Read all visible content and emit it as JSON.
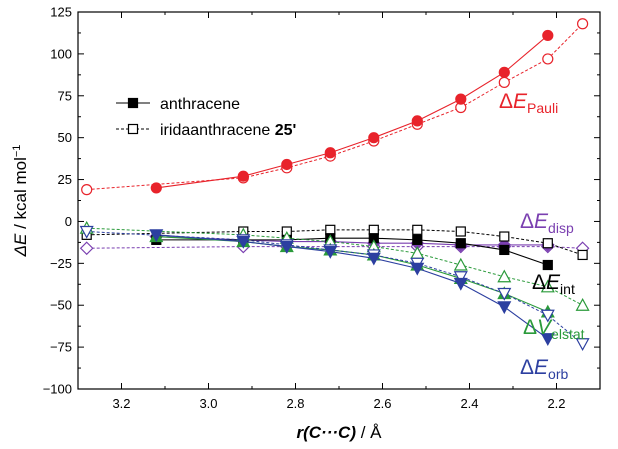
{
  "chart_data": {
    "type": "line",
    "xlabel": {
      "main": "r(C···C)",
      "unit": " / Å"
    },
    "ylabel": {
      "main": "ΔE",
      "unit": " / kcal mol",
      "sup": "−1"
    },
    "xlim": [
      3.3,
      2.1
    ],
    "ylim": [
      -100,
      125
    ],
    "x_reversed": true,
    "xticks": [
      3.2,
      3.0,
      2.8,
      2.6,
      2.4,
      2.2
    ],
    "xtick_labels": [
      "3.2",
      "3.0",
      "2.8",
      "2.6",
      "2.4",
      "2.2"
    ],
    "yticks": [
      -100,
      -75,
      -50,
      -25,
      0,
      25,
      50,
      75,
      100,
      125
    ],
    "ytick_labels": [
      "−100",
      "−75",
      "−50",
      "−25",
      "0",
      "25",
      "50",
      "75",
      "100",
      "125"
    ],
    "legend": {
      "placement": "top-left",
      "entries": [
        {
          "label": "anthracene",
          "style": "filled",
          "line": "solid"
        },
        {
          "label": "iridaanthracene ",
          "bold_suffix": "25'",
          "style": "open",
          "line": "dotted"
        }
      ]
    },
    "x_anthracene": [
      3.12,
      2.92,
      2.82,
      2.72,
      2.62,
      2.52,
      2.42,
      2.32,
      2.22
    ],
    "x_iridaanthracene": [
      3.28,
      2.92,
      2.82,
      2.72,
      2.62,
      2.52,
      2.42,
      2.32,
      2.22,
      2.14
    ],
    "series": [
      {
        "name": "Pauli",
        "color": "#e8232b",
        "marker": "circle",
        "label_sub": "Pauli",
        "label_letter": "E",
        "label_prefix": "Δ",
        "anthracene": [
          20,
          27,
          34,
          41,
          50,
          60,
          73,
          89,
          111
        ],
        "iridaanthracene": [
          19,
          26,
          32,
          39,
          48,
          58,
          68,
          83,
          97,
          118
        ]
      },
      {
        "name": "disp",
        "color": "#7a3fb0",
        "marker": "diamond",
        "label_sub": "disp",
        "label_letter": "E",
        "label_prefix": "Δ",
        "anthracene": [
          -9,
          -11,
          -12,
          -12,
          -13,
          -13,
          -14,
          -14,
          -14
        ],
        "iridaanthracene": [
          -16,
          -15,
          -15,
          -15,
          -15,
          -15,
          -15,
          -15,
          -15,
          -16
        ]
      },
      {
        "name": "int",
        "color": "#000000",
        "marker": "square",
        "label_sub": "int",
        "label_letter": "E",
        "label_prefix": "Δ",
        "anthracene": [
          -11,
          -11,
          -11,
          -10,
          -10,
          -11,
          -13,
          -17,
          -26
        ],
        "iridaanthracene": [
          -8,
          -6,
          -6,
          -5,
          -5,
          -5,
          -6,
          -9,
          -13,
          -20
        ]
      },
      {
        "name": "elstat",
        "color": "#2a9a3a",
        "marker": "triangle-up",
        "label_sub": "elstat",
        "label_letter": "V",
        "label_prefix": "Δ",
        "anthracene": [
          -9,
          -12,
          -15,
          -17,
          -20,
          -26,
          -34,
          -43,
          -54
        ],
        "iridaanthracene": [
          -4,
          -8,
          -10,
          -12,
          -15,
          -19,
          -26,
          -33,
          -39,
          -50
        ]
      },
      {
        "name": "orb",
        "color": "#2c3fa0",
        "marker": "triangle-down",
        "label_sub": "orb",
        "label_letter": "E",
        "label_prefix": "Δ",
        "anthracene": [
          -8,
          -12,
          -15,
          -18,
          -22,
          -28,
          -37,
          -51,
          -70
        ],
        "iridaanthracene": [
          -6,
          -11,
          -14,
          -17,
          -20,
          -25,
          -33,
          -43,
          -56,
          -73
        ]
      }
    ]
  }
}
